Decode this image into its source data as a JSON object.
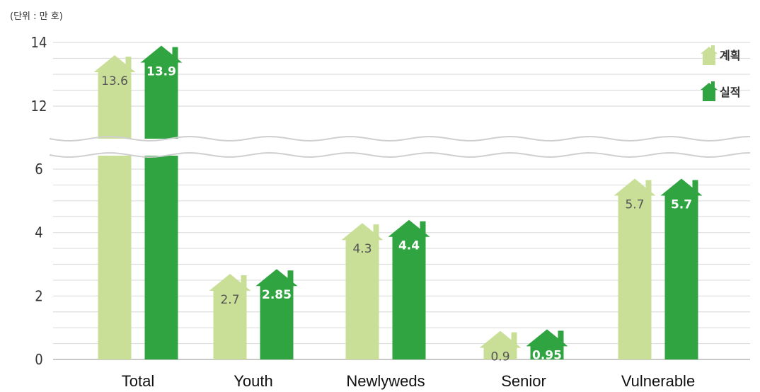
{
  "chart_data": {
    "type": "bar",
    "unit_label": "(단위 : 만 호)",
    "categories": [
      "Total",
      "Youth",
      "Newlyweds",
      "Senior",
      "Vulnerable"
    ],
    "series": [
      {
        "name": "계획",
        "values": [
          13.6,
          2.7,
          4.3,
          0.9,
          5.7
        ],
        "labels": [
          "13.6",
          "2.7",
          "4.3",
          "0.9",
          "5.7"
        ],
        "color": "#c9df98",
        "label_color": "#555555"
      },
      {
        "name": "실적",
        "values": [
          13.9,
          2.85,
          4.4,
          0.95,
          5.7
        ],
        "labels": [
          "13.9",
          "2.85",
          "4.4",
          "0.95",
          "5.7"
        ],
        "color": "#2fa441",
        "label_color": "#ffffff"
      }
    ],
    "y_ticks": [
      "0",
      "2",
      "4",
      "6",
      "12",
      "14"
    ],
    "ylim": [
      0,
      14
    ],
    "axis_break": {
      "from": 7,
      "to": 11
    },
    "legend_position": "top-right",
    "grid": true
  }
}
